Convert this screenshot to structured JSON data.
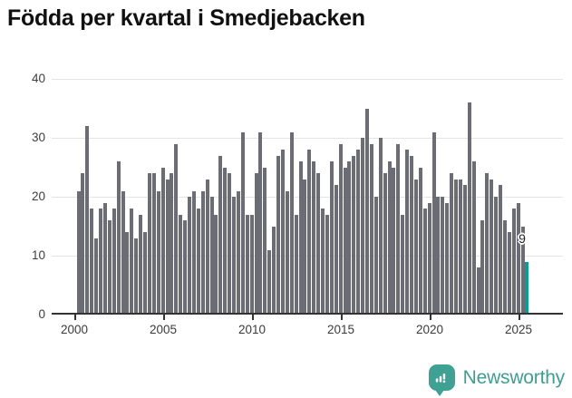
{
  "title": "Födda per kvartal i Smedjebacken",
  "chart_data": {
    "type": "bar",
    "x_start": "2000-Q1",
    "x_tick_labels": [
      "2000",
      "2005",
      "2010",
      "2015",
      "2020",
      "2025"
    ],
    "y_ticks": [
      0,
      10,
      20,
      30,
      40
    ],
    "ylim": [
      0,
      40
    ],
    "grid": true,
    "series": [
      {
        "name": "Födda per kvartal",
        "values": [
          21,
          24,
          32,
          18,
          13,
          18,
          19,
          16,
          18,
          26,
          21,
          14,
          18,
          13,
          17,
          14,
          24,
          24,
          21,
          25,
          23,
          24,
          29,
          17,
          16,
          20,
          21,
          18,
          21,
          23,
          20,
          17,
          27,
          25,
          24,
          20,
          21,
          31,
          17,
          17,
          24,
          31,
          25,
          11,
          15,
          27,
          28,
          21,
          31,
          17,
          26,
          23,
          28,
          26,
          24,
          18,
          17,
          26,
          22,
          29,
          25,
          26,
          27,
          28,
          30,
          35,
          29,
          20,
          30,
          24,
          26,
          25,
          29,
          17,
          28,
          27,
          23,
          25,
          18,
          19,
          31,
          20,
          20,
          19,
          24,
          23,
          23,
          22,
          36,
          26,
          8,
          16,
          24,
          23,
          20,
          22,
          16,
          14,
          18,
          19,
          15,
          9
        ]
      }
    ],
    "highlight_last": true,
    "last_value_label": "9",
    "bar_color": "#6c6c75",
    "highlight_color": "#0a9e93"
  },
  "footer": {
    "brand": "Newsworthy"
  },
  "colors": {
    "title": "#111111",
    "grid": "#e4e4e4",
    "axis": "#333333",
    "brand_teal": "#3fa193"
  }
}
